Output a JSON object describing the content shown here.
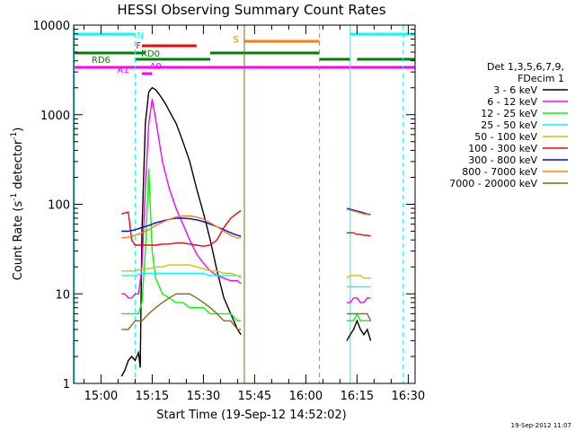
{
  "chart_data": {
    "type": "line",
    "title": "HESSI Observing Summary Count Rates",
    "xlabel": "Start Time (19-Sep-12 14:52:02)",
    "ylabel": "Count Rate (s",
    "ylabel_sup1": "-1",
    "ylabel_mid": " detector",
    "ylabel_sup2": "-1",
    "ylabel_end": ")",
    "yscale": "log",
    "ylim": [
      1,
      10000
    ],
    "xlim_minutes": [
      52,
      152
    ],
    "x_ticks": [
      {
        "m": 60,
        "label": "15:00"
      },
      {
        "m": 75,
        "label": "15:15"
      },
      {
        "m": 90,
        "label": "15:30"
      },
      {
        "m": 105,
        "label": "15:45"
      },
      {
        "m": 120,
        "label": "16:00"
      },
      {
        "m": 135,
        "label": "16:15"
      },
      {
        "m": 150,
        "label": "16:30"
      }
    ],
    "y_ticks": [
      {
        "v": 1,
        "label": "1"
      },
      {
        "v": 10,
        "label": "10"
      },
      {
        "v": 100,
        "label": "100"
      },
      {
        "v": 1000,
        "label": "1000"
      },
      {
        "v": 10000,
        "label": "10000"
      }
    ],
    "legend_header": [
      "Det 1,3,5,6,7,9,",
      "FDecim 1"
    ],
    "series": [
      {
        "name": "3 - 6 keV",
        "color": "#000000",
        "segments": [
          {
            "x": [
              66,
              67,
              68,
              69,
              70,
              71,
              71.5,
              72,
              73,
              74,
              75,
              76,
              77,
              78,
              79,
              80,
              82,
              84,
              86,
              88,
              90,
              92,
              94,
              96,
              98,
              100,
              101
            ],
            "y": [
              1.2,
              1.4,
              1.8,
              2,
              1.8,
              2.2,
              1.5,
              50,
              800,
              1800,
              2000,
              1900,
              1700,
              1500,
              1300,
              1100,
              800,
              500,
              300,
              150,
              80,
              40,
              18,
              9,
              6,
              4,
              3.5
            ]
          },
          {
            "x": [
              132,
              133,
              134,
              135,
              136,
              137,
              138,
              139
            ],
            "y": [
              3,
              3.5,
              4,
              5,
              4,
              3.5,
              4,
              3
            ]
          }
        ]
      },
      {
        "name": "6 - 12 keV",
        "color": "#ff00ff",
        "segments": [
          {
            "x": [
              66,
              67,
              68,
              69,
              70,
              71,
              72,
              73,
              74,
              75,
              76,
              78,
              80,
              82,
              84,
              86,
              88,
              90,
              92,
              94,
              96,
              98,
              100,
              101
            ],
            "y": [
              10,
              10,
              9,
              9,
              10,
              10,
              20,
              150,
              800,
              1500,
              900,
              300,
              150,
              90,
              60,
              40,
              28,
              22,
              18,
              16,
              15,
              14,
              14,
              13
            ]
          },
          {
            "x": [
              132,
              133,
              134,
              135,
              136,
              137,
              138,
              139
            ],
            "y": [
              8,
              8,
              9,
              9,
              8,
              8,
              9,
              9
            ]
          }
        ]
      },
      {
        "name": "12 - 25 keV",
        "color": "#00ff00",
        "segments": [
          {
            "x": [
              66,
              68,
              70,
              71,
              72,
              73,
              74,
              75,
              76,
              78,
              80,
              82,
              84,
              86,
              88,
              90,
              92,
              94,
              96,
              98,
              100,
              101
            ],
            "y": [
              6,
              6,
              6,
              6,
              8,
              30,
              250,
              30,
              15,
              10,
              9,
              8,
              8,
              7,
              7,
              7,
              6,
              6,
              6,
              6,
              5,
              5
            ]
          },
          {
            "x": [
              132,
              133,
              134,
              135,
              136,
              137,
              138,
              139
            ],
            "y": [
              5,
              5,
              5,
              6,
              5,
              5,
              5,
              5
            ]
          }
        ]
      },
      {
        "name": "25 - 50 keV",
        "color": "#00ffff",
        "segments": [
          {
            "x": [
              66,
              68,
              70,
              72,
              74,
              76,
              78,
              80,
              82,
              84,
              86,
              88,
              90,
              92,
              94,
              96,
              98,
              100,
              101
            ],
            "y": [
              16,
              16,
              16,
              17,
              17,
              17,
              17,
              17,
              17,
              17,
              17,
              17,
              17,
              16,
              16,
              16,
              16,
              16,
              15
            ]
          },
          {
            "x": [
              132,
              133,
              134,
              135,
              136,
              137,
              138,
              139
            ],
            "y": [
              12,
              12,
              12,
              12,
              12,
              12,
              12,
              12
            ]
          }
        ]
      },
      {
        "name": "50 - 100 keV",
        "color": "#c8c800",
        "segments": [
          {
            "x": [
              66,
              68,
              70,
              72,
              74,
              76,
              78,
              80,
              82,
              84,
              86,
              88,
              90,
              92,
              94,
              96,
              98,
              100,
              101
            ],
            "y": [
              18,
              18,
              18,
              19,
              19,
              20,
              20,
              21,
              21,
              21,
              21,
              20,
              19,
              18,
              18,
              17,
              17,
              16,
              16
            ]
          },
          {
            "x": [
              132,
              133,
              134,
              135,
              136,
              137,
              138,
              139
            ],
            "y": [
              15,
              16,
              16,
              16,
              16,
              15,
              15,
              15
            ]
          }
        ]
      },
      {
        "name": "100 - 300 keV",
        "color": "#ff0000",
        "segments": [
          {
            "x": [
              66,
              67,
              68,
              69,
              70,
              72,
              74,
              76,
              78,
              80,
              82,
              84,
              86,
              88,
              90,
              92,
              94,
              96,
              98,
              100,
              101
            ],
            "y": [
              78,
              80,
              82,
              40,
              35,
              35,
              35,
              35,
              36,
              36,
              37,
              37,
              36,
              35,
              34,
              35,
              40,
              55,
              70,
              80,
              85
            ]
          },
          {
            "x": [
              132,
              133,
              134,
              135,
              136,
              137,
              138,
              139
            ],
            "y": [
              48,
              48,
              48,
              46,
              46,
              45,
              45,
              44
            ]
          }
        ]
      },
      {
        "name": "300 - 800 keV",
        "color": "#0000ff",
        "segments": [
          {
            "x": [
              66,
              68,
              70,
              72,
              74,
              76,
              78,
              80,
              82,
              84,
              86,
              88,
              90,
              92,
              94,
              96,
              98,
              100,
              101
            ],
            "y": [
              50,
              50,
              52,
              55,
              58,
              62,
              65,
              68,
              70,
              70,
              69,
              67,
              64,
              60,
              56,
              52,
              48,
              45,
              44
            ]
          },
          {
            "x": [
              132,
              133,
              134,
              135,
              136,
              137,
              138,
              139
            ],
            "y": [
              90,
              88,
              86,
              84,
              82,
              80,
              78,
              77
            ]
          }
        ]
      },
      {
        "name": "800 - 7000 keV",
        "color": "#ff8000",
        "segments": [
          {
            "x": [
              66,
              68,
              70,
              72,
              74,
              76,
              78,
              80,
              82,
              84,
              86,
              88,
              90,
              92,
              94,
              96,
              98,
              100,
              101
            ],
            "y": [
              42,
              43,
              45,
              48,
              52,
              58,
              63,
              68,
              72,
              74,
              74,
              72,
              68,
              62,
              56,
              50,
              45,
              42,
              42
            ]
          },
          {
            "x": [
              132,
              133,
              134,
              135,
              136,
              137,
              138,
              139
            ],
            "y": [
              88,
              86,
              84,
              82,
              80,
              78,
              77,
              76
            ]
          }
        ]
      },
      {
        "name": "7000 - 20000 keV",
        "color": "#8b6914",
        "segments": [
          {
            "x": [
              66,
              68,
              70,
              72,
              74,
              76,
              78,
              80,
              82,
              84,
              86,
              88,
              90,
              92,
              94,
              96,
              98,
              100,
              101
            ],
            "y": [
              4,
              4,
              5,
              5,
              6,
              7,
              8,
              9,
              10,
              10,
              10,
              9,
              8,
              7,
              6,
              5,
              5,
              4,
              4
            ]
          },
          {
            "x": [
              132,
              133,
              134,
              135,
              136,
              137,
              138,
              139
            ],
            "y": [
              6,
              6,
              6,
              6,
              6,
              6,
              6,
              5
            ]
          }
        ]
      }
    ],
    "vertical_lines": [
      {
        "m": 52.2,
        "color": "#00ffff",
        "dash": false
      },
      {
        "m": 70.0,
        "color": "#00ffff",
        "dash": true
      },
      {
        "m": 102.0,
        "color": "#8b6914",
        "dash": false
      },
      {
        "m": 124.0,
        "color": "#ff8000",
        "dash": true
      },
      {
        "m": 133.0,
        "color": "#00ffff",
        "dash": false
      },
      {
        "m": 148.5,
        "color": "#00ffff",
        "dash": true
      }
    ],
    "flag_bars": [
      {
        "label": "N",
        "color": "#00ffff",
        "y": 10,
        "label_m": 71.5,
        "label_y": 11,
        "segments": [
          [
            52,
            70
          ],
          [
            133,
            152
          ]
        ]
      },
      {
        "label": "S",
        "color": "#ff8000",
        "y": 18,
        "label_m": 99.5,
        "label_y": 15,
        "segments": [
          [
            102,
            124
          ]
        ]
      },
      {
        "label": "F",
        "color": "#ff0000",
        "y": 23,
        "label_m": 71.0,
        "label_y": 22,
        "segments": [
          [
            72,
            88
          ]
        ]
      },
      {
        "label": "RD0",
        "color": "#008000",
        "y": 31,
        "label_m": 74.5,
        "label_y": 31,
        "segments": [
          [
            52,
            73
          ],
          [
            92,
            124
          ]
        ]
      },
      {
        "label": "RD6",
        "color": "#008000",
        "y": 38,
        "label_m": 60.0,
        "label_y": 38,
        "segments": [
          [
            70,
            92
          ],
          [
            124,
            133
          ],
          [
            135,
            152
          ]
        ]
      },
      {
        "label": "A1",
        "color": "#ff00ff",
        "y": 47,
        "label_m": 66.5,
        "label_y": 49,
        "segments": [
          [
            52,
            152
          ]
        ]
      },
      {
        "label": "A0",
        "color": "#ff00ff",
        "y": 54,
        "label_m": 76.0,
        "label_y": 45,
        "segments": [
          [
            72,
            75
          ]
        ]
      }
    ],
    "timestamp": "19-Sep-2012 11:07"
  }
}
